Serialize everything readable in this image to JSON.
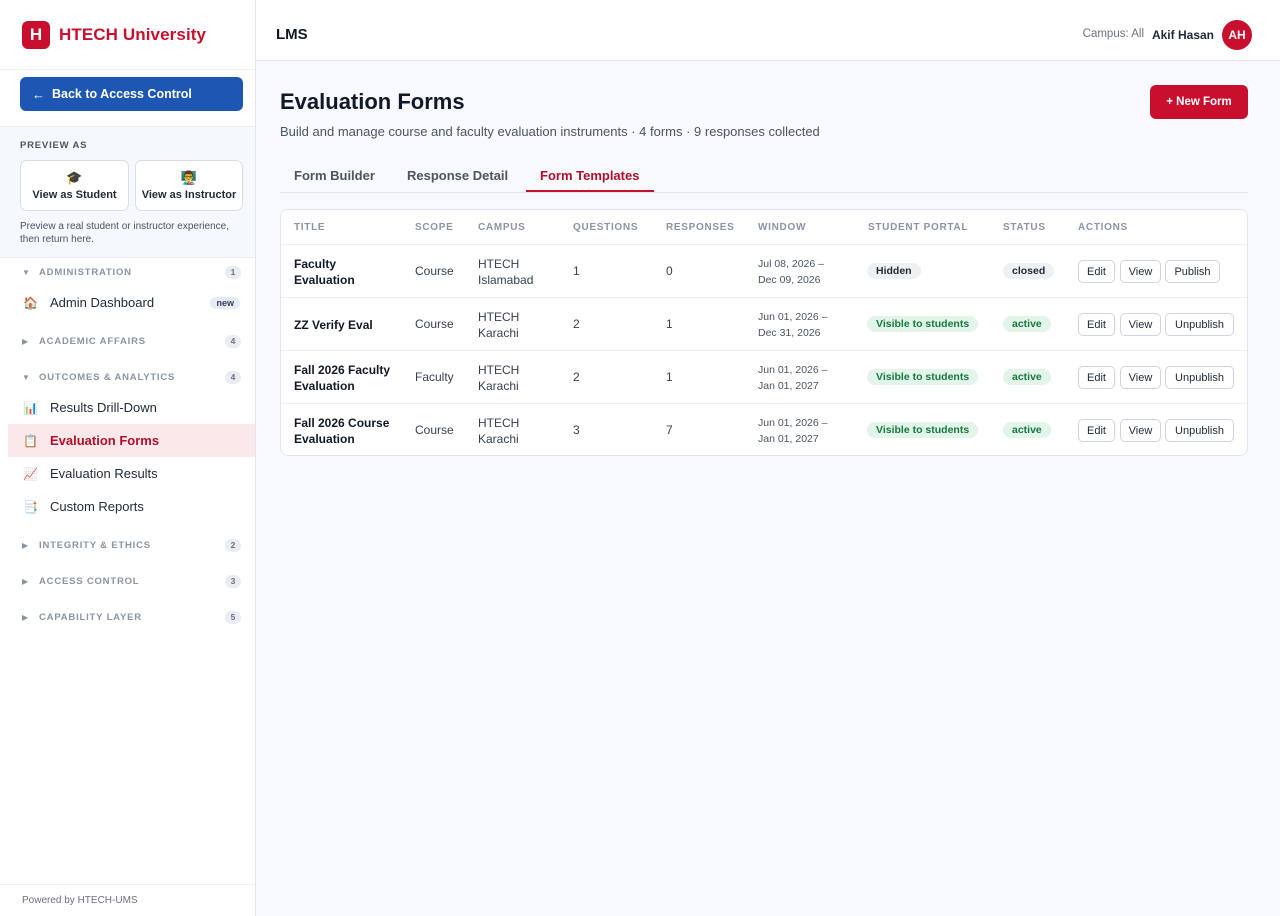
{
  "brand": {
    "logo_letter": "H",
    "name": "HTECH University"
  },
  "sidebar": {
    "back_label": "Back to Access Control",
    "back_arrow": "←",
    "preview_title": "PREVIEW AS",
    "preview_student": "View as Student",
    "preview_student_icon": "🎓",
    "preview_instructor": "View as Instructor",
    "preview_instructor_icon": "👨‍🏫",
    "preview_note": "Preview a real student or instructor experience, then return here.",
    "sections": [
      {
        "label": "ADMINISTRATION",
        "count": "1",
        "caret": "▼"
      },
      {
        "label": "ACADEMIC AFFAIRS",
        "count": "4",
        "caret": "▶"
      },
      {
        "label": "OUTCOMES & ANALYTICS",
        "count": "4",
        "caret": "▼"
      },
      {
        "label": "INTEGRITY & ETHICS",
        "count": "2",
        "caret": "▶"
      },
      {
        "label": "ACCESS CONTROL",
        "count": "3",
        "caret": "▶"
      },
      {
        "label": "CAPABILITY LAYER",
        "count": "5",
        "caret": "▶"
      }
    ],
    "items": [
      {
        "label": "Admin Dashboard",
        "icon": "🏠",
        "badge": "new"
      },
      {
        "label": "Results Drill-Down",
        "icon": "📊"
      },
      {
        "label": "Evaluation Forms",
        "icon": "📋"
      },
      {
        "label": "Evaluation Results",
        "icon": "📈"
      },
      {
        "label": "Custom Reports",
        "icon": "📑"
      }
    ],
    "footer": "Powered by HTECH-UMS"
  },
  "topbar": {
    "title": "LMS",
    "campus": "Campus: All",
    "user": "Akif Hasan",
    "avatar": "AH"
  },
  "main": {
    "title": "Evaluation Forms",
    "subtitle": "Build and manage course and faculty evaluation instruments · 4 forms · 9 responses collected",
    "new_button": "+ New Form",
    "tabs": [
      "Form Builder",
      "Response Detail",
      "Form Templates"
    ],
    "columns": [
      "TITLE",
      "SCOPE",
      "CAMPUS",
      "QUESTIONS",
      "RESPONSES",
      "WINDOW",
      "STUDENT PORTAL",
      "STATUS",
      "ACTIONS"
    ],
    "rows": [
      {
        "title1": "Faculty",
        "title2": "Evaluation",
        "scope": "Course",
        "campus1": "HTECH",
        "campus2": "Islamabad",
        "questions": "1",
        "responses": "0",
        "win1": "Jul 08, 2026 –",
        "win2": "Dec 09, 2026",
        "portal": "Hidden",
        "status": "closed",
        "a1": "Edit",
        "a2": "View",
        "a3": "Publish"
      },
      {
        "title1": "ZZ Verify Eval",
        "title2": "",
        "scope": "Course",
        "campus1": "HTECH",
        "campus2": "Karachi",
        "questions": "2",
        "responses": "1",
        "win1": "Jun 01, 2026 –",
        "win2": "Dec 31, 2026",
        "portal": "Visible to students",
        "status": "active",
        "a1": "Edit",
        "a2": "View",
        "a3": "Unpublish"
      },
      {
        "title1": "Fall 2026 Faculty",
        "title2": "Evaluation",
        "scope": "Faculty",
        "campus1": "HTECH",
        "campus2": "Karachi",
        "questions": "2",
        "responses": "1",
        "win1": "Jun 01, 2026 –",
        "win2": "Jan 01, 2027",
        "portal": "Visible to students",
        "status": "active",
        "a1": "Edit",
        "a2": "View",
        "a3": "Unpublish"
      },
      {
        "title1": "Fall 2026 Course",
        "title2": "Evaluation",
        "scope": "Course",
        "campus1": "HTECH",
        "campus2": "Karachi",
        "questions": "3",
        "responses": "7",
        "win1": "Jun 01, 2026 –",
        "win2": "Jan 01, 2027",
        "portal": "Visible to students",
        "status": "active",
        "a1": "Edit",
        "a2": "View",
        "a3": "Unpublish"
      }
    ]
  }
}
